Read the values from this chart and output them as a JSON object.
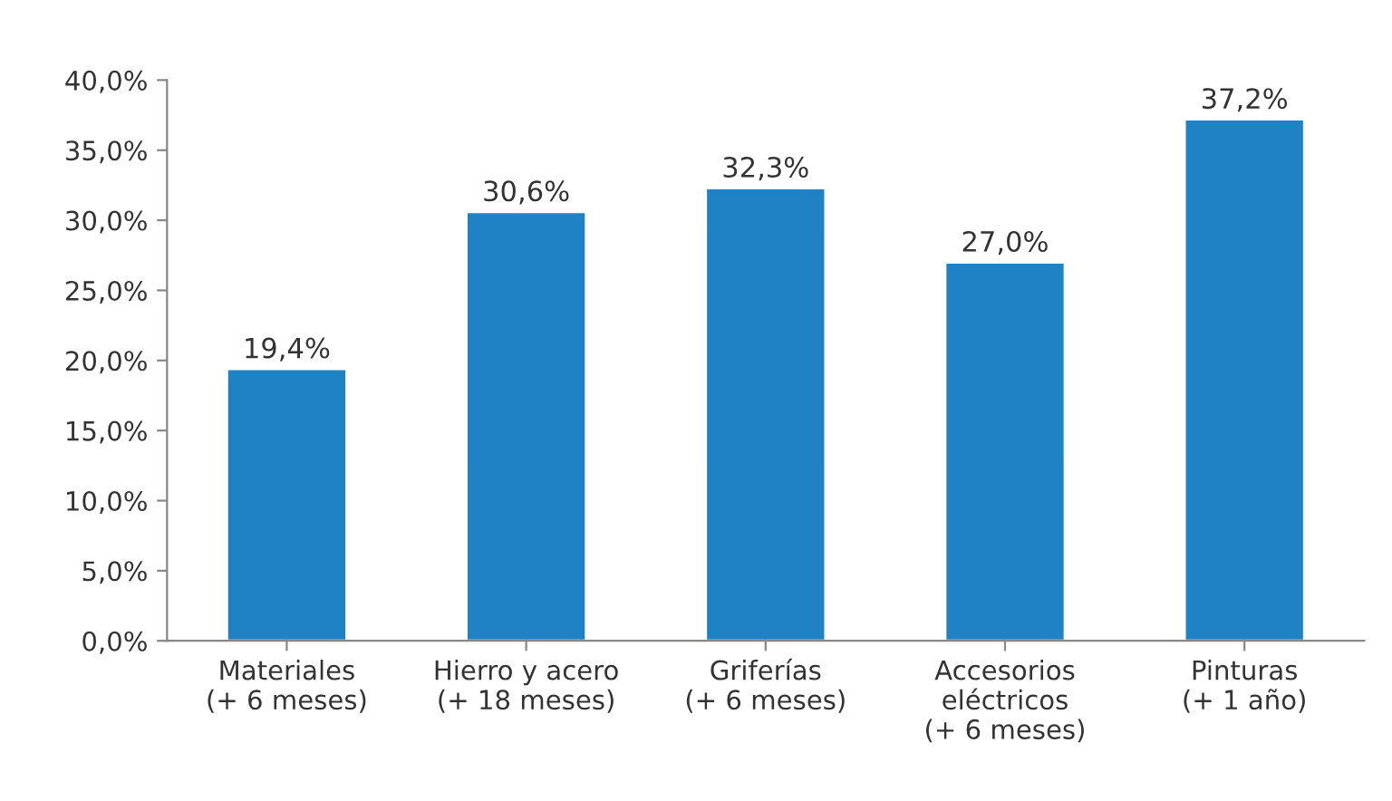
{
  "chart_data": {
    "type": "bar",
    "categories": [
      "Materiales\n(+ 6 meses)",
      "Hierro y acero\n(+ 18 meses)",
      "Griferías\n(+ 6 meses)",
      "Accesorios\neléctricos\n(+ 6 meses)",
      "Pinturas\n(+ 1 año)"
    ],
    "values": [
      19.4,
      30.6,
      32.3,
      27.0,
      37.2
    ],
    "value_labels": [
      "19,4%",
      "30,6%",
      "32,3%",
      "27,0%",
      "37,2%"
    ],
    "color": "#1f82c4",
    "ylim": [
      0,
      40
    ],
    "yticks": [
      {
        "value": 0,
        "label": "0,0%"
      },
      {
        "value": 5,
        "label": "5,0%"
      },
      {
        "value": 10,
        "label": "10,0%"
      },
      {
        "value": 15,
        "label": "15,0%"
      },
      {
        "value": 20,
        "label": "20,0%"
      },
      {
        "value": 25,
        "label": "25,0%"
      },
      {
        "value": 30,
        "label": "30,0%"
      },
      {
        "value": 35,
        "label": "35,0%"
      },
      {
        "value": 40,
        "label": "40,0%"
      }
    ],
    "grid": false,
    "legend": false
  }
}
